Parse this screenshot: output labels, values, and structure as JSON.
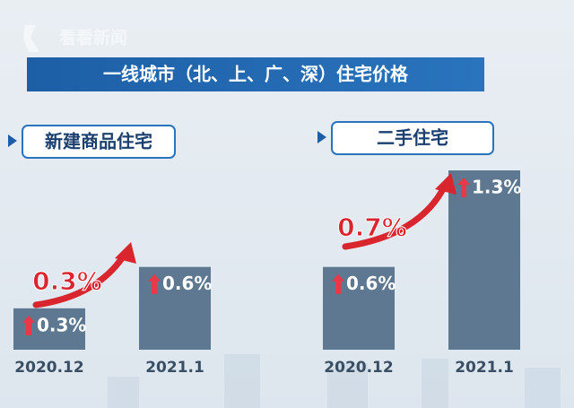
{
  "logo": "看看新闻",
  "title": "一线城市（北、上、广、深）住宅价格",
  "chart_data": [
    {
      "type": "bar",
      "title": "新建商品住宅",
      "categories": [
        "2020.12",
        "2021.1"
      ],
      "values": [
        0.3,
        0.6
      ],
      "value_labels": [
        "0.3%",
        "0.6%"
      ],
      "color": "#5d7890",
      "annotation": "0.3%"
    },
    {
      "type": "bar",
      "title": "二手住宅",
      "categories": [
        "2020.12",
        "2021.1"
      ],
      "values": [
        0.6,
        1.3
      ],
      "value_labels": [
        "0.6%",
        "1.3%"
      ],
      "color": "#5d7890",
      "annotation": "0.7%"
    }
  ]
}
